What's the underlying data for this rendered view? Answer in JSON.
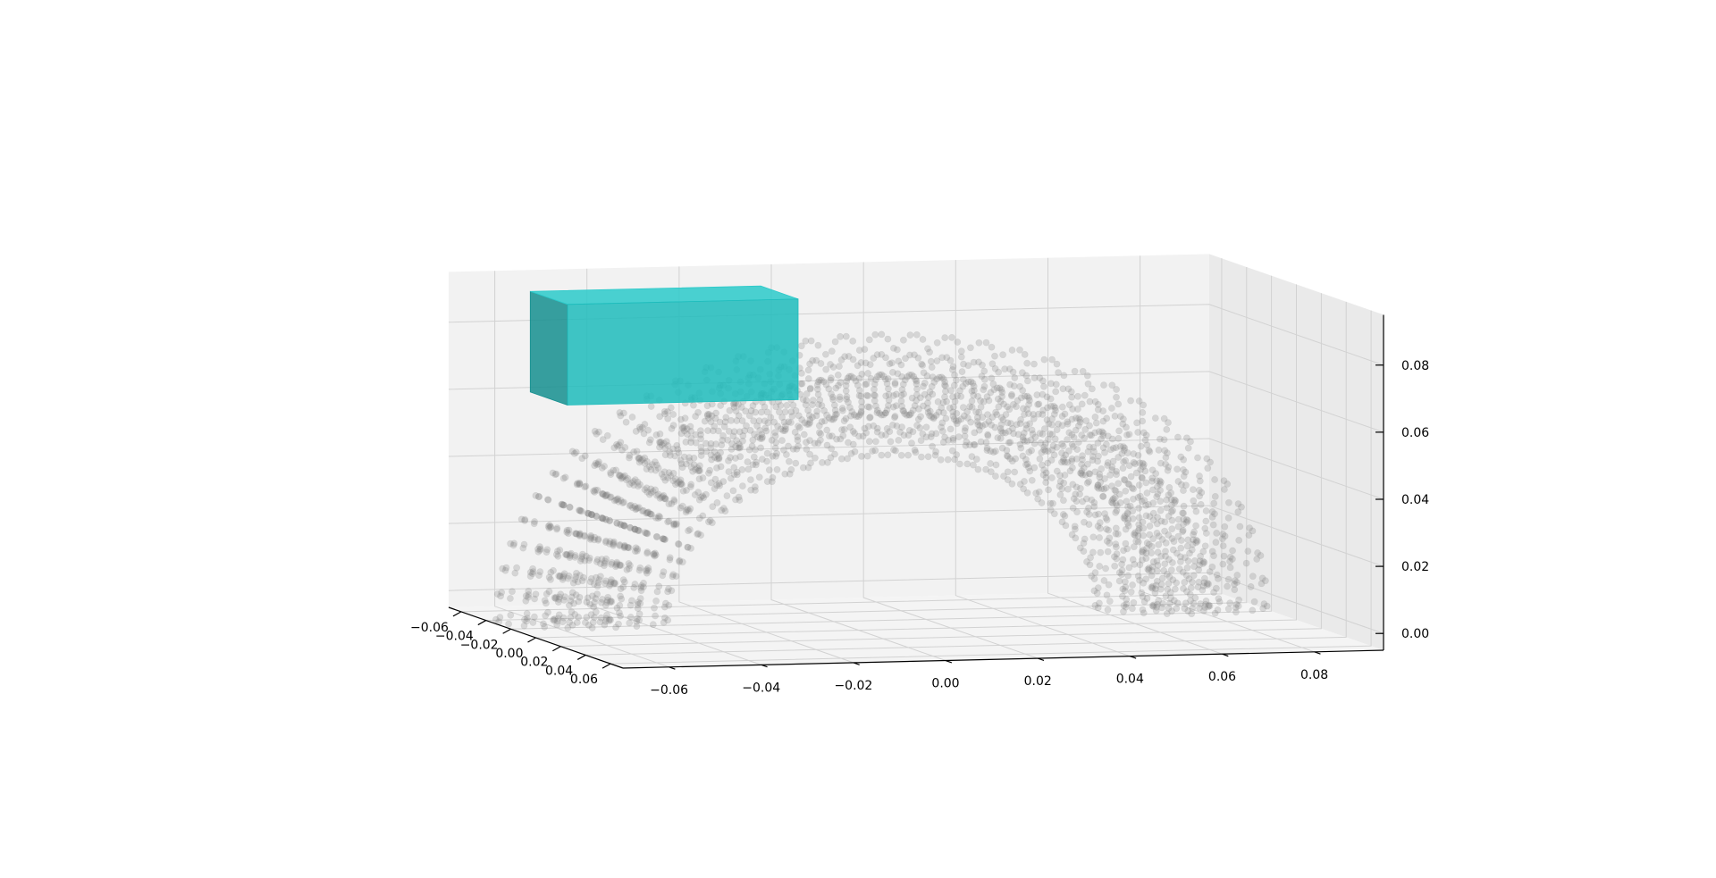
{
  "chart_data": {
    "type": "scatter",
    "projection": "3d",
    "title": "",
    "xlabel": "",
    "ylabel": "",
    "zlabel": "",
    "grid": true,
    "axes": {
      "x": {
        "ticks": [
          -0.06,
          -0.04,
          -0.02,
          0.0,
          0.02,
          0.04,
          0.06,
          0.08
        ],
        "tick_labels": [
          "−0.06",
          "−0.04",
          "−0.02",
          "0.00",
          "0.02",
          "0.04",
          "0.06",
          "0.08"
        ]
      },
      "y": {
        "ticks": [
          -0.06,
          -0.04,
          -0.02,
          0.0,
          0.02,
          0.04,
          0.06
        ],
        "tick_labels": [
          "−0.06",
          "−0.04",
          "−0.02",
          "0.00",
          "0.02",
          "0.04",
          "0.06"
        ]
      },
      "z": {
        "ticks": [
          0.0,
          0.02,
          0.04,
          0.06,
          0.08
        ],
        "tick_labels": [
          "0.00",
          "0.02",
          "0.04",
          "0.06",
          "0.08"
        ]
      }
    },
    "series": [
      {
        "kind": "point-cloud",
        "shape": "half-torus arch",
        "marker": "circle",
        "color": "#808080",
        "alpha": 0.25,
        "center_x": 0.005,
        "major_radius": 0.065,
        "minor_radius": 0.018,
        "angle_range_deg": [
          0,
          180
        ]
      },
      {
        "kind": "box",
        "color": "#1fbcbc",
        "alpha": 0.85,
        "x_range": [
          -0.055,
          -0.005
        ],
        "y_range": [
          -0.06,
          -0.03
        ],
        "z_range": [
          0.06,
          0.09
        ]
      }
    ]
  }
}
